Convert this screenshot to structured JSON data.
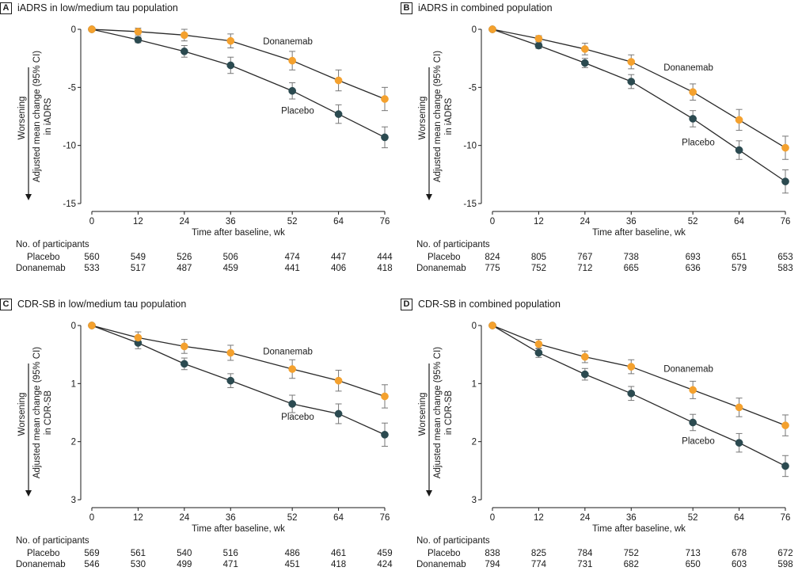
{
  "shared": {
    "xlabel": "Time after baseline, wk",
    "worsening_label": "Worsening",
    "participants_header": "No. of participants",
    "placebo_label": "Placebo",
    "donanemab_label": "Donanemab",
    "colors": {
      "placebo": "#2b4a50",
      "donanemab": "#f4a12e"
    }
  },
  "chart_data": [
    {
      "type": "line",
      "letter": "A",
      "title": "iADRS in low/medium tau population",
      "ylabel_line1": "Adjusted mean change (95% CI)",
      "ylabel_line2": "in iADRS",
      "xlabel": "Time after baseline, wk",
      "x": [
        0,
        12,
        24,
        36,
        52,
        64,
        76
      ],
      "xlim": [
        0,
        76
      ],
      "ylim": [
        -15,
        0
      ],
      "yticks": [
        0,
        -5,
        -10,
        -15
      ],
      "series": [
        {
          "name": "Placebo",
          "values": [
            0,
            -0.9,
            -1.9,
            -3.1,
            -5.3,
            -7.3,
            -9.3
          ],
          "ci": [
            0,
            0.25,
            0.5,
            0.7,
            0.7,
            0.8,
            0.9
          ]
        },
        {
          "name": "Donanemab",
          "values": [
            0,
            -0.2,
            -0.5,
            -1.0,
            -2.7,
            -4.4,
            -6.0
          ],
          "ci": [
            0,
            0.3,
            0.5,
            0.6,
            0.8,
            0.9,
            1.0
          ]
        }
      ],
      "participants": {
        "placebo": [
          "560",
          "549",
          "526",
          "506",
          "474",
          "447",
          "444"
        ],
        "donanemab": [
          "533",
          "517",
          "487",
          "459",
          "441",
          "406",
          "418"
        ]
      }
    },
    {
      "type": "line",
      "letter": "B",
      "title": "iADRS in combined population",
      "ylabel_line1": "Adjusted mean change (95% CI)",
      "ylabel_line2": "in iADRS",
      "xlabel": "Time after baseline, wk",
      "x": [
        0,
        12,
        24,
        36,
        52,
        64,
        76
      ],
      "xlim": [
        0,
        76
      ],
      "ylim": [
        -15,
        0
      ],
      "yticks": [
        0,
        -5,
        -10,
        -15
      ],
      "series": [
        {
          "name": "Placebo",
          "values": [
            0,
            -1.4,
            -2.9,
            -4.5,
            -7.7,
            -10.4,
            -13.1
          ],
          "ci": [
            0,
            0.25,
            0.4,
            0.6,
            0.7,
            0.8,
            1.0
          ]
        },
        {
          "name": "Donanemab",
          "values": [
            0,
            -0.8,
            -1.7,
            -2.8,
            -5.4,
            -7.8,
            -10.2
          ],
          "ci": [
            0,
            0.25,
            0.5,
            0.6,
            0.7,
            0.9,
            1.0
          ]
        }
      ],
      "participants": {
        "placebo": [
          "824",
          "805",
          "767",
          "738",
          "693",
          "651",
          "653"
        ],
        "donanemab": [
          "775",
          "752",
          "712",
          "665",
          "636",
          "579",
          "583"
        ]
      }
    },
    {
      "type": "line",
      "letter": "C",
      "title": "CDR-SB in low/medium tau population",
      "ylabel_line1": "Adjusted mean change (95% CI)",
      "ylabel_line2": "in CDR-SB",
      "xlabel": "Time after baseline, wk",
      "x": [
        0,
        12,
        24,
        36,
        52,
        64,
        76
      ],
      "xlim": [
        0,
        76
      ],
      "ylim": [
        3,
        0
      ],
      "yticks": [
        0,
        1,
        2,
        3
      ],
      "series": [
        {
          "name": "Placebo",
          "values": [
            0,
            0.3,
            0.66,
            0.95,
            1.35,
            1.52,
            1.88
          ],
          "ci": [
            0,
            0.1,
            0.1,
            0.12,
            0.15,
            0.17,
            0.2
          ]
        },
        {
          "name": "Donanemab",
          "values": [
            0,
            0.21,
            0.36,
            0.47,
            0.75,
            0.95,
            1.22
          ],
          "ci": [
            0,
            0.1,
            0.12,
            0.13,
            0.16,
            0.18,
            0.2
          ]
        }
      ],
      "participants": {
        "placebo": [
          "569",
          "561",
          "540",
          "516",
          "486",
          "461",
          "459"
        ],
        "donanemab": [
          "546",
          "530",
          "499",
          "471",
          "451",
          "418",
          "424"
        ]
      }
    },
    {
      "type": "line",
      "letter": "D",
      "title": "CDR-SB in combined population",
      "ylabel_line1": "Adjusted mean change (95% CI)",
      "ylabel_line2": "in CDR-SB",
      "xlabel": "Time after baseline, wk",
      "x": [
        0,
        12,
        24,
        36,
        52,
        64,
        76
      ],
      "xlim": [
        0,
        76
      ],
      "ylim": [
        3,
        0
      ],
      "yticks": [
        0,
        1,
        2,
        3
      ],
      "series": [
        {
          "name": "Placebo",
          "values": [
            0,
            0.47,
            0.84,
            1.17,
            1.67,
            2.02,
            2.42
          ],
          "ci": [
            0,
            0.08,
            0.1,
            0.12,
            0.14,
            0.16,
            0.18
          ]
        },
        {
          "name": "Donanemab",
          "values": [
            0,
            0.32,
            0.54,
            0.71,
            1.11,
            1.41,
            1.72
          ],
          "ci": [
            0,
            0.08,
            0.1,
            0.12,
            0.15,
            0.16,
            0.18
          ]
        }
      ],
      "participants": {
        "placebo": [
          "838",
          "825",
          "784",
          "752",
          "713",
          "678",
          "672"
        ],
        "donanemab": [
          "794",
          "774",
          "731",
          "682",
          "650",
          "603",
          "598"
        ]
      }
    }
  ]
}
